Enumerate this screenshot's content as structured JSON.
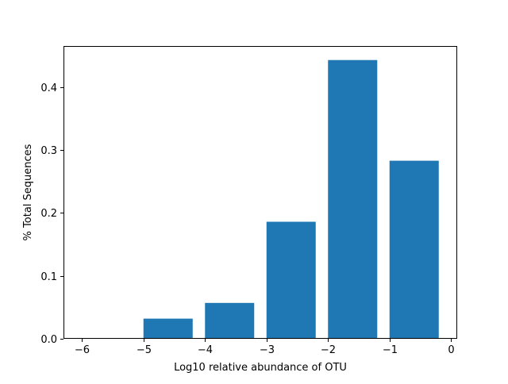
{
  "chart_data": {
    "type": "bar",
    "bars": [
      {
        "x": -6.0,
        "x_end": -5.2,
        "value": 0.0
      },
      {
        "x": -5.0,
        "x_end": -4.2,
        "value": 0.032
      },
      {
        "x": -4.0,
        "x_end": -3.2,
        "value": 0.057
      },
      {
        "x": -3.0,
        "x_end": -2.2,
        "value": 0.186
      },
      {
        "x": -2.0,
        "x_end": -1.2,
        "value": 0.443
      },
      {
        "x": -1.0,
        "x_end": -0.2,
        "value": 0.283
      }
    ],
    "xlabel": "Log10 relative abundance of OTU",
    "ylabel": "% Total Sequences",
    "xlim": [
      -6.3,
      0.1
    ],
    "ylim": [
      0,
      0.4653
    ],
    "xticks": [
      -6,
      -5,
      -4,
      -3,
      -2,
      -1,
      0
    ],
    "xtick_labels": [
      "−6",
      "−5",
      "−4",
      "−3",
      "−2",
      "−1",
      "0"
    ],
    "yticks": [
      0.0,
      0.1,
      0.2,
      0.3,
      0.4
    ],
    "ytick_labels": [
      "0.0",
      "0.1",
      "0.2",
      "0.3",
      "0.4"
    ],
    "bar_color": "#1f77b4",
    "grid": false,
    "legend": "none"
  }
}
